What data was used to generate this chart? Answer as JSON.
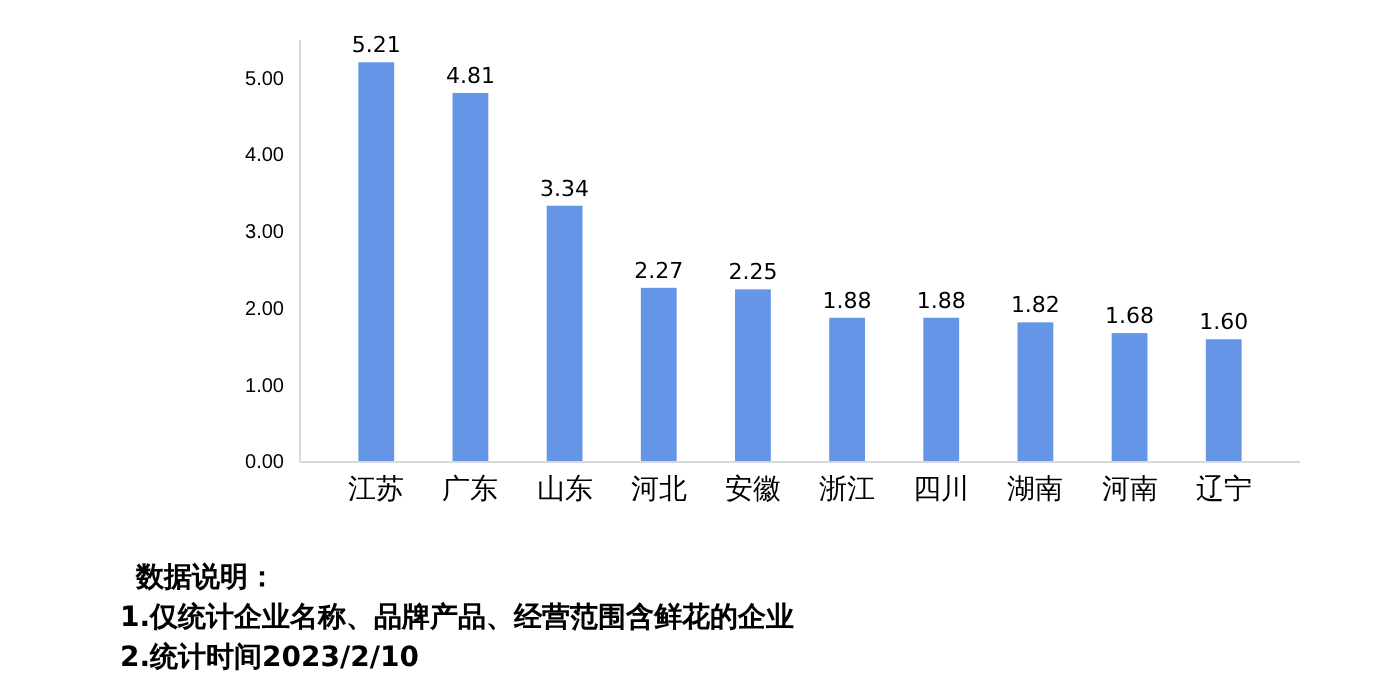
{
  "chart_data": {
    "type": "bar",
    "categories": [
      "江苏",
      "广东",
      "山东",
      "河北",
      "安徽",
      "浙江",
      "四川",
      "湖南",
      "河南",
      "辽宁"
    ],
    "values": [
      5.21,
      4.81,
      3.34,
      2.27,
      2.25,
      1.88,
      1.88,
      1.82,
      1.68,
      1.6
    ],
    "color": "#6495e6",
    "value_labels": [
      "5.21",
      "4.81",
      "3.34",
      "2.27",
      "2.25",
      "1.88",
      "1.88",
      "1.82",
      "1.68",
      "1.60"
    ],
    "ylim": [
      0,
      5.5
    ],
    "yticks": [
      {
        "value": 0,
        "label": "0.00"
      },
      {
        "value": 1,
        "label": "1.00"
      },
      {
        "value": 2,
        "label": "2.00"
      },
      {
        "value": 3,
        "label": "3.00"
      },
      {
        "value": 4,
        "label": "4.00"
      },
      {
        "value": 5,
        "label": "5.00"
      }
    ],
    "grid": false,
    "annotations": [
      "数据说明：",
      "1.仅统计企业名称、品牌产品、经营范围含鲜花的企业",
      "2.统计时间2023/2/10"
    ]
  }
}
